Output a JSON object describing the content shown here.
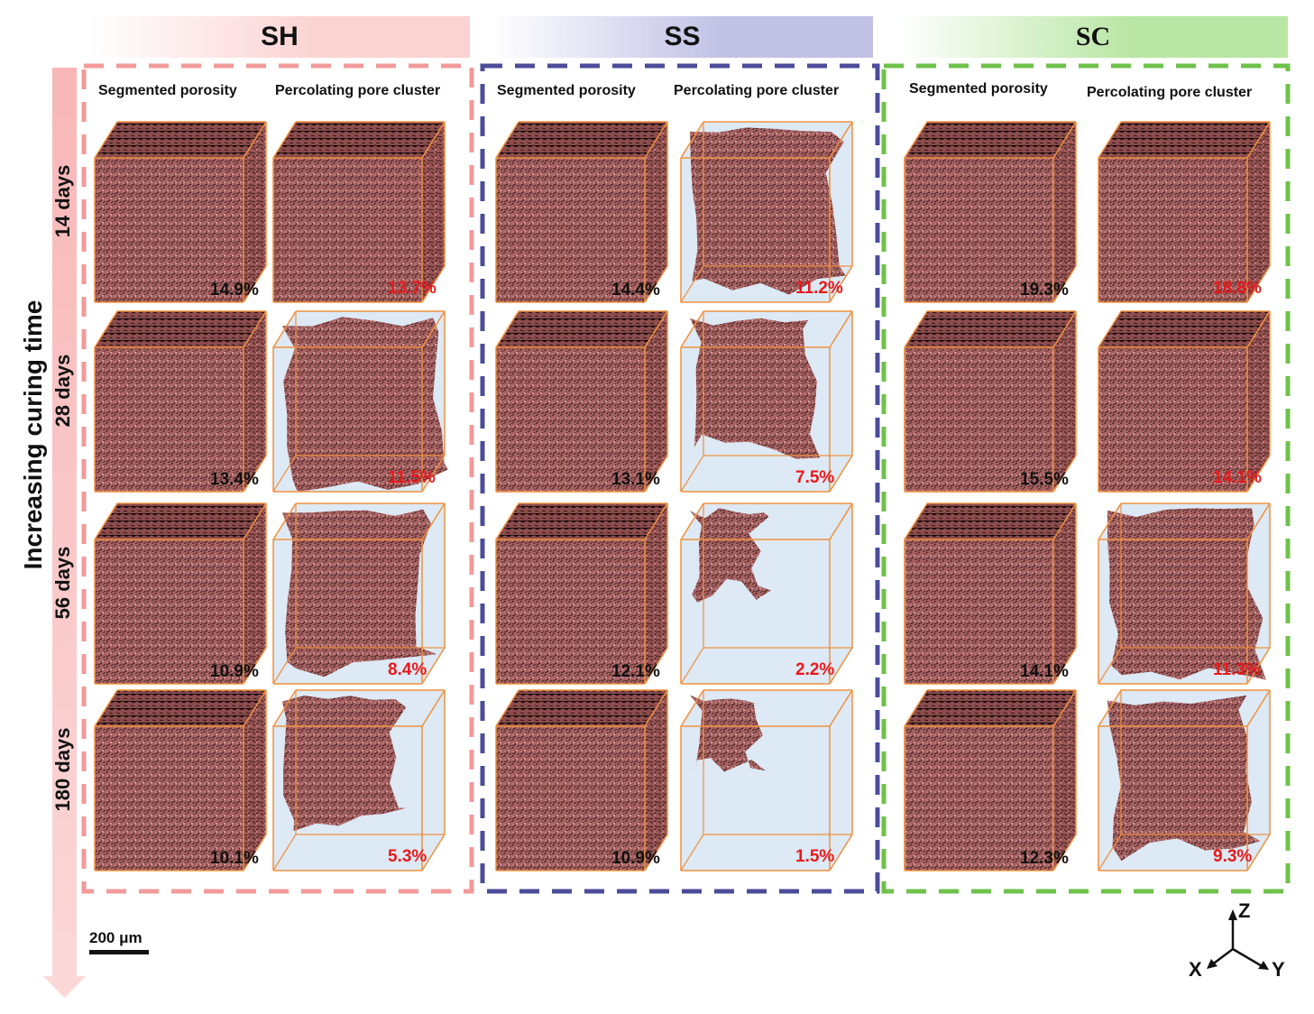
{
  "axis_title": "Increasing curing time",
  "groups": [
    {
      "id": "SH",
      "label": "SH",
      "color": "#f29a9a",
      "header_bg": "#fbd3d3"
    },
    {
      "id": "SS",
      "label": "SS",
      "color": "#4c4c9a",
      "header_bg": "#c2c2e6"
    },
    {
      "id": "SC",
      "label": "SC",
      "color": "#6fc14b",
      "header_bg": "#b9e6a4"
    }
  ],
  "column_labels": {
    "segmented": "Segmented porosity",
    "percolating": "Percolating pore cluster"
  },
  "rows": [
    {
      "label": "14 days",
      "values": [
        [
          "14.9%",
          "13.7%"
        ],
        [
          "14.4%",
          "11.2%"
        ],
        [
          "19.3%",
          "18.8%"
        ]
      ]
    },
    {
      "label": "28 days",
      "values": [
        [
          "13.4%",
          "11.5%"
        ],
        [
          "13.1%",
          "7.5%"
        ],
        [
          "15.5%",
          "14.1%"
        ]
      ]
    },
    {
      "label": "56 days",
      "values": [
        [
          "10.9%",
          "8.4%"
        ],
        [
          "12.1%",
          "2.2%"
        ],
        [
          "14.1%",
          "11.3%"
        ]
      ]
    },
    {
      "label": "180 days",
      "values": [
        [
          "10.1%",
          "5.3%"
        ],
        [
          "10.9%",
          "1.5%"
        ],
        [
          "12.3%",
          "9.3%"
        ]
      ]
    }
  ],
  "scale_bar": "200 μm",
  "axes": {
    "z": "Z",
    "x": "X",
    "y": "Y"
  },
  "colors": {
    "pore": "#a86262",
    "cube_edge": "#f0913f",
    "cube_fill": "#dde9f4",
    "percolating_value": "#e8191b",
    "segmented_value": "#111111"
  }
}
